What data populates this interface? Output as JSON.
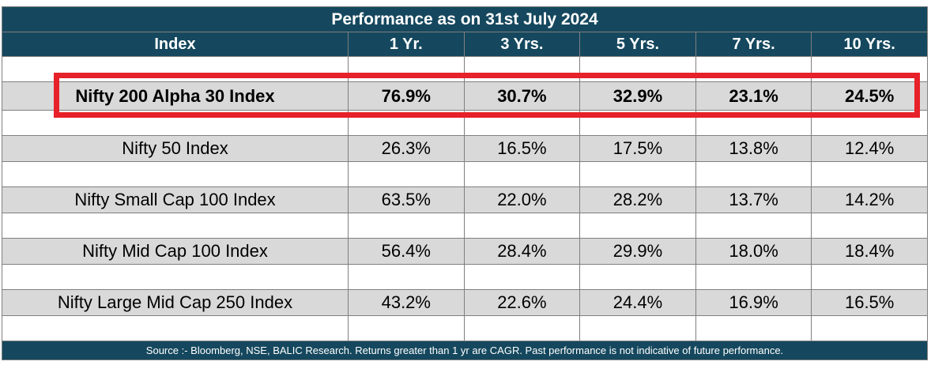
{
  "title": "Performance as on 31st July 2024",
  "columns": [
    "Index",
    "1 Yr.",
    "3 Yrs.",
    "5 Yrs.",
    "7 Yrs.",
    "10 Yrs."
  ],
  "rows": [
    {
      "name": "Nifty 200 Alpha 30 Index",
      "highlighted": true,
      "values": [
        "76.9%",
        "30.7%",
        "32.9%",
        "23.1%",
        "24.5%"
      ]
    },
    {
      "name": "Nifty 50 Index",
      "highlighted": false,
      "values": [
        "26.3%",
        "16.5%",
        "17.5%",
        "13.8%",
        "12.4%"
      ]
    },
    {
      "name": "Nifty Small Cap 100 Index",
      "highlighted": false,
      "values": [
        "63.5%",
        "22.0%",
        "28.2%",
        "13.7%",
        "14.2%"
      ]
    },
    {
      "name": "Nifty Mid Cap 100 Index",
      "highlighted": false,
      "values": [
        "56.4%",
        "28.4%",
        "29.9%",
        "18.0%",
        "18.4%"
      ]
    },
    {
      "name": "Nifty Large Mid Cap 250 Index",
      "highlighted": false,
      "values": [
        "43.2%",
        "22.6%",
        "24.4%",
        "16.9%",
        "16.5%"
      ]
    }
  ],
  "footer": "Source :- Bloomberg, NSE, BALIC Research. Returns greater than 1 yr are CAGR. Past performance is not indicative of future performance.",
  "colors": {
    "header_bg": "#15485E",
    "row_bg": "#D9D9D9",
    "highlight_border": "#E62129",
    "grid_line": "#7F7F7F"
  }
}
